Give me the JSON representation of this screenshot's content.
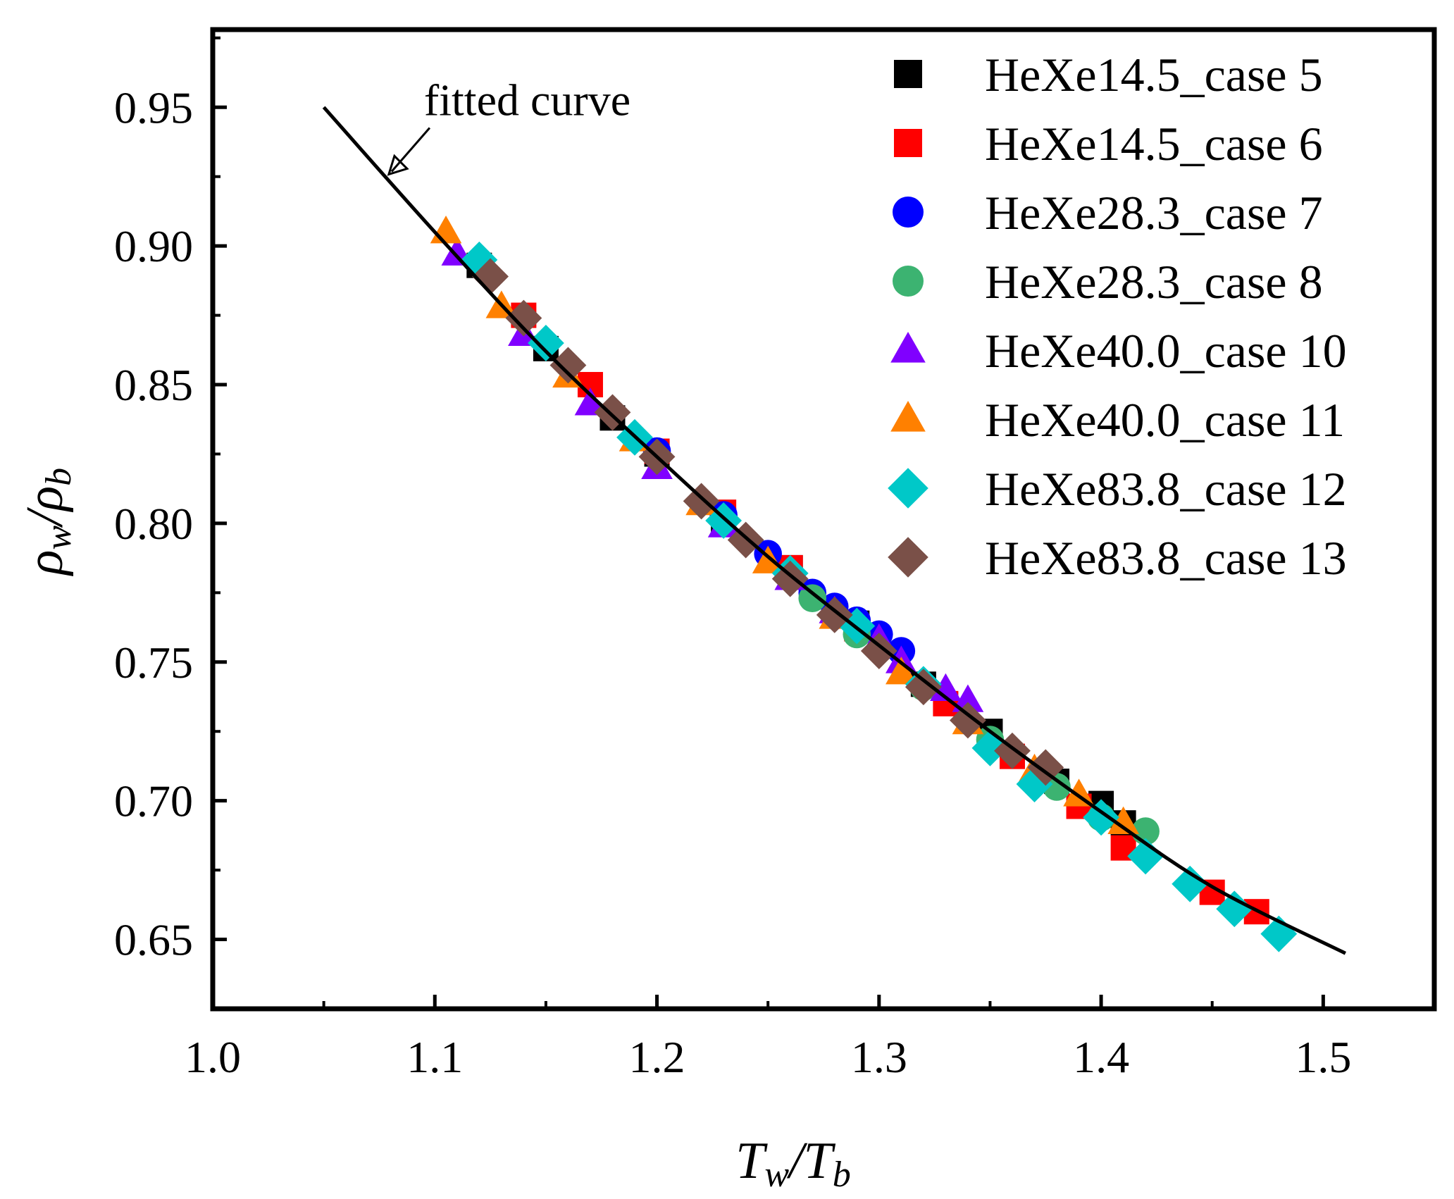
{
  "chart_data": {
    "type": "scatter",
    "title": "",
    "xlabel": {
      "main": "T",
      "sub1": "w",
      "slash": "/",
      "main2": "T",
      "sub2": "b"
    },
    "ylabel": {
      "main": "ρ",
      "sub1": "w",
      "slash": "/",
      "main2": "ρ",
      "sub2": "b"
    },
    "xlim": [
      1.0,
      1.55
    ],
    "ylim": [
      0.625,
      0.978
    ],
    "x_ticks": [
      1.0,
      1.1,
      1.2,
      1.3,
      1.4,
      1.5
    ],
    "x_tick_labels": [
      "1.0",
      "1.1",
      "1.2",
      "1.3",
      "1.4",
      "1.5"
    ],
    "y_ticks": [
      0.65,
      0.7,
      0.75,
      0.8,
      0.85,
      0.9,
      0.95
    ],
    "y_tick_labels": [
      "0.65",
      "0.70",
      "0.75",
      "0.80",
      "0.85",
      "0.90",
      "0.95"
    ],
    "legend_position": "top-right",
    "annotation": {
      "text": "fitted curve",
      "points_to_x": 1.078
    },
    "fitted_curve": {
      "name": "fitted curve",
      "color": "#000000",
      "x": [
        1.05,
        1.1,
        1.15,
        1.2,
        1.25,
        1.3,
        1.35,
        1.4,
        1.45,
        1.51
      ],
      "y": [
        0.95,
        0.905,
        0.862,
        0.824,
        0.788,
        0.756,
        0.725,
        0.696,
        0.669,
        0.645
      ]
    },
    "series": [
      {
        "name": "HeXe14.5_case 5",
        "marker": "square",
        "color": "#000000",
        "x": [
          1.12,
          1.15,
          1.18,
          1.2,
          1.23,
          1.26,
          1.29,
          1.32,
          1.35,
          1.38,
          1.4,
          1.41
        ],
        "y": [
          0.893,
          0.863,
          0.838,
          0.825,
          0.801,
          0.784,
          0.764,
          0.742,
          0.725,
          0.707,
          0.699,
          0.692
        ]
      },
      {
        "name": "HeXe14.5_case 6",
        "marker": "square",
        "color": "#ff0000",
        "x": [
          1.14,
          1.17,
          1.2,
          1.23,
          1.26,
          1.29,
          1.33,
          1.36,
          1.39,
          1.41,
          1.45,
          1.47
        ],
        "y": [
          0.875,
          0.85,
          0.826,
          0.804,
          0.784,
          0.762,
          0.735,
          0.716,
          0.698,
          0.683,
          0.667,
          0.66
        ]
      },
      {
        "name": "HeXe28.3_case 7",
        "marker": "circle",
        "color": "#0000ff",
        "x": [
          1.2,
          1.23,
          1.25,
          1.27,
          1.28,
          1.29,
          1.3,
          1.31
        ],
        "y": [
          0.826,
          0.803,
          0.789,
          0.775,
          0.77,
          0.765,
          0.76,
          0.754
        ]
      },
      {
        "name": "HeXe28.3_case 8",
        "marker": "circle",
        "color": "#3cb371",
        "x": [
          1.27,
          1.29,
          1.32,
          1.35,
          1.38,
          1.4,
          1.42
        ],
        "y": [
          0.773,
          0.76,
          0.741,
          0.722,
          0.705,
          0.694,
          0.689
        ]
      },
      {
        "name": "HeXe40.0_case 10",
        "marker": "triangle",
        "color": "#8000ff",
        "x": [
          1.11,
          1.14,
          1.17,
          1.2,
          1.23,
          1.26,
          1.28,
          1.3,
          1.31,
          1.33,
          1.34
        ],
        "y": [
          0.897,
          0.868,
          0.843,
          0.82,
          0.799,
          0.78,
          0.768,
          0.758,
          0.75,
          0.74,
          0.736
        ]
      },
      {
        "name": "HeXe40.0_case 11",
        "marker": "triangle",
        "color": "#ff8000",
        "x": [
          1.105,
          1.13,
          1.16,
          1.19,
          1.22,
          1.25,
          1.28,
          1.31,
          1.34,
          1.37,
          1.39,
          1.41
        ],
        "y": [
          0.905,
          0.878,
          0.853,
          0.83,
          0.807,
          0.786,
          0.766,
          0.746,
          0.728,
          0.711,
          0.702,
          0.692
        ]
      },
      {
        "name": "HeXe83.8_case 12",
        "marker": "diamond",
        "color": "#00c8c8",
        "x": [
          1.12,
          1.15,
          1.19,
          1.23,
          1.26,
          1.29,
          1.32,
          1.35,
          1.37,
          1.4,
          1.42,
          1.44,
          1.46,
          1.48
        ],
        "y": [
          0.895,
          0.865,
          0.831,
          0.801,
          0.782,
          0.763,
          0.742,
          0.719,
          0.706,
          0.694,
          0.68,
          0.67,
          0.661,
          0.652
        ]
      },
      {
        "name": "HeXe83.8_case 13",
        "marker": "diamond",
        "color": "#7a5048",
        "x": [
          1.125,
          1.14,
          1.16,
          1.18,
          1.2,
          1.22,
          1.24,
          1.26,
          1.28,
          1.3,
          1.32,
          1.34,
          1.36,
          1.375
        ],
        "y": [
          0.889,
          0.874,
          0.857,
          0.84,
          0.824,
          0.808,
          0.794,
          0.78,
          0.767,
          0.754,
          0.741,
          0.729,
          0.718,
          0.712
        ]
      }
    ]
  }
}
